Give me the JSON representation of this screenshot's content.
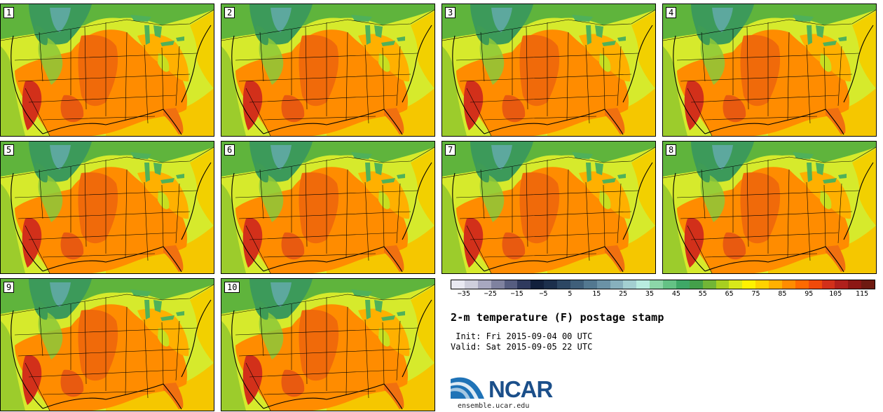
{
  "panels": [
    {
      "label": "1"
    },
    {
      "label": "2"
    },
    {
      "label": "3"
    },
    {
      "label": "4"
    },
    {
      "label": "5"
    },
    {
      "label": "6"
    },
    {
      "label": "7"
    },
    {
      "label": "8"
    },
    {
      "label": "9"
    },
    {
      "label": "10"
    }
  ],
  "colorbar": {
    "colors": [
      "#e9e9f1",
      "#cfcfdc",
      "#a8a8bf",
      "#7f829f",
      "#565d80",
      "#2f3a5e",
      "#12203c",
      "#1c2f4c",
      "#2d4763",
      "#3f5f7a",
      "#537890",
      "#6b92a6",
      "#87b0bd",
      "#a3cfd1",
      "#b8ece0",
      "#8cd6a8",
      "#64c285",
      "#3fa867",
      "#44a04a",
      "#72b636",
      "#a8cf21",
      "#d8e81a",
      "#fff200",
      "#ffd200",
      "#ffb000",
      "#ff8c00",
      "#ff6a00",
      "#f04a0a",
      "#d2301a",
      "#b0201c",
      "#8c1714",
      "#6e1a10"
    ],
    "ticks": [
      "−35",
      "−25",
      "−15",
      "−5",
      "5",
      "15",
      "25",
      "35",
      "45",
      "55",
      "65",
      "75",
      "85",
      "95",
      "105",
      "115"
    ]
  },
  "title": "2-m temperature (F) postage stamp",
  "init": " Init: Fri 2015-09-04 00 UTC",
  "valid": "Valid: Sat 2015-09-05 22 UTC",
  "logo": {
    "text": "NCAR",
    "url": "ensemble.ucar.edu"
  }
}
